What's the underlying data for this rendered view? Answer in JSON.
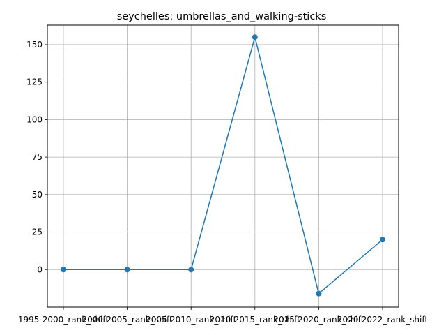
{
  "chart_data": {
    "type": "line",
    "title": "seychelles: umbrellas_and_walking-sticks",
    "xlabel": "",
    "ylabel": "",
    "categories": [
      "1995-2000_rank_shift",
      "2000-2005_rank_shift",
      "2005-2010_rank_shift",
      "2010-2015_rank_shift",
      "2015-2020_rank_shift",
      "2020-2022_rank_shift"
    ],
    "series": [
      {
        "values": [
          0,
          0,
          0,
          155,
          -16,
          20
        ]
      }
    ],
    "ylim": [
      -25,
      163
    ],
    "yticks": [
      0,
      25,
      50,
      75,
      100,
      125,
      150
    ],
    "grid": true,
    "colors": {
      "line": "#1f77b4",
      "grid": "#b0b0b0",
      "axis": "#000000"
    }
  }
}
